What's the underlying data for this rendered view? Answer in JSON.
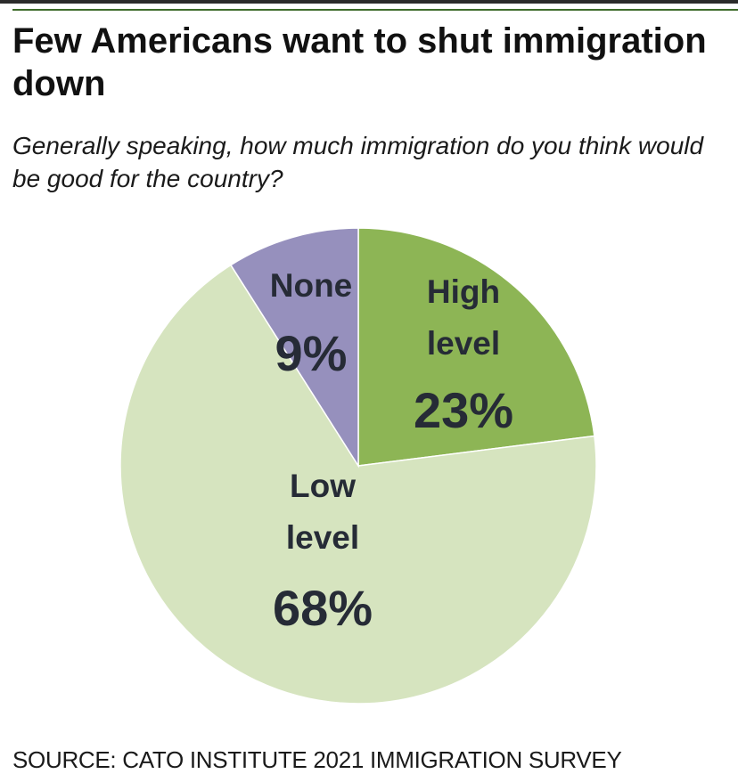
{
  "header": {
    "title": "Few Americans want to shut immigration down",
    "subtitle": "Generally speaking, how much immigration do you think would be good for the country?"
  },
  "footer": {
    "source": "SOURCE: CATO INSTITUTE 2021 IMMIGRATION SURVEY"
  },
  "colors": {
    "high": "#8db555",
    "low": "#d6e4bf",
    "none": "#9690bd",
    "label": "#262b36",
    "rule": "#3d6b2a"
  },
  "chart_data": {
    "type": "pie",
    "title": "Few Americans want to shut immigration down",
    "subtitle": "Generally speaking, how much immigration do you think would be good for the country?",
    "slices": [
      {
        "label_lines": [
          "High",
          "level"
        ],
        "pct_text": "23%",
        "value": 23,
        "color": "#8db555"
      },
      {
        "label_lines": [
          "Low",
          "level"
        ],
        "pct_text": "68%",
        "value": 68,
        "color": "#d6e4bf"
      },
      {
        "label_lines": [
          "None"
        ],
        "pct_text": "9%",
        "value": 9,
        "color": "#9690bd"
      }
    ],
    "start": "12 o'clock",
    "direction": "clockwise",
    "legend": "none"
  }
}
